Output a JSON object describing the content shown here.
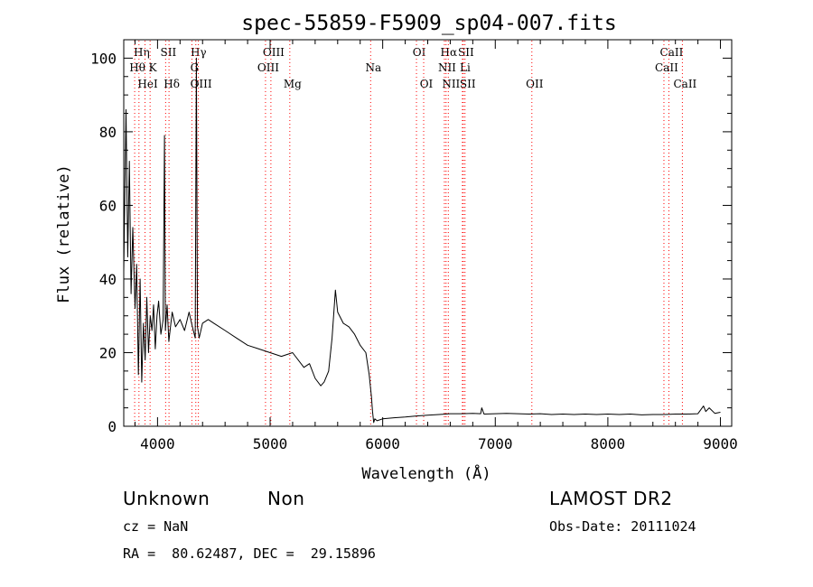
{
  "chart_data": {
    "type": "line",
    "title": "spec-55859-F5909_sp04-007.fits",
    "xlabel": "Wavelength (Å)",
    "ylabel": "Flux (relative)",
    "xlim": [
      3700,
      9100
    ],
    "ylim": [
      0,
      105
    ],
    "xticks": [
      4000,
      5000,
      6000,
      7000,
      8000,
      9000
    ],
    "yticks": [
      0,
      20,
      40,
      60,
      80,
      100
    ],
    "grid": false,
    "series": [
      {
        "x": [
          3700,
          3720,
          3735,
          3750,
          3765,
          3780,
          3800,
          3815,
          3830,
          3845,
          3860,
          3875,
          3890,
          3905,
          3920,
          3935,
          3950,
          3965,
          3980,
          3995,
          4010,
          4030,
          4050,
          4062,
          4070,
          4085,
          4100,
          4130,
          4160,
          4200,
          4240,
          4280,
          4310,
          4335,
          4345,
          4355,
          4370,
          4400,
          4450,
          4500,
          4600,
          4700,
          4800,
          4900,
          5000,
          5100,
          5200,
          5300,
          5350,
          5400,
          5450,
          5480,
          5520,
          5550,
          5580,
          5600,
          5650,
          5700,
          5750,
          5800,
          5850,
          5880,
          5900,
          5910,
          5920,
          5930,
          5950,
          6000,
          6100,
          6200,
          6300,
          6400,
          6500,
          6600,
          6700,
          6800,
          6870,
          6880,
          6900,
          7000,
          7100,
          7200,
          7300,
          7400,
          7500,
          7600,
          7700,
          7800,
          7900,
          8000,
          8100,
          8200,
          8300,
          8400,
          8500,
          8600,
          8700,
          8800,
          8850,
          8870,
          8900,
          8950,
          9000
        ],
        "y": [
          42,
          86,
          46,
          72,
          36,
          54,
          32,
          44,
          14,
          40,
          12,
          28,
          18,
          35,
          20,
          30,
          26,
          33,
          21,
          30,
          34,
          25,
          29,
          79,
          26,
          33,
          23,
          31,
          27,
          29,
          26,
          31,
          27,
          24,
          100,
          27,
          24,
          28,
          29,
          28,
          26,
          24,
          22,
          21,
          20,
          19,
          20,
          16,
          17,
          13,
          11,
          12,
          15,
          24,
          37,
          31,
          28,
          27,
          25,
          22,
          20,
          14,
          8,
          4,
          1,
          2,
          1.5,
          2,
          2.3,
          2.5,
          2.8,
          3,
          3.2,
          3.4,
          3.4,
          3.5,
          3.4,
          5,
          3.3,
          3.4,
          3.5,
          3.4,
          3.3,
          3.4,
          3.2,
          3.3,
          3.2,
          3.3,
          3.2,
          3.3,
          3.2,
          3.3,
          3.1,
          3.2,
          3.2,
          3.3,
          3.3,
          3.4,
          5.5,
          4,
          5,
          3.5,
          3.8
        ]
      }
    ],
    "line_markers": [
      {
        "label": "Hη",
        "x": 3835,
        "row": 0
      },
      {
        "label": "Hθ",
        "x": 3797,
        "row": 1
      },
      {
        "label": "HeI",
        "x": 3889,
        "row": 2
      },
      {
        "label": "K",
        "x": 3934,
        "row": 1
      },
      {
        "label": "SII",
        "x": 4072,
        "row": 0
      },
      {
        "label": "Hδ",
        "x": 4102,
        "row": 2
      },
      {
        "label": "Hγ",
        "x": 4340,
        "row": 0
      },
      {
        "label": "G",
        "x": 4305,
        "row": 1
      },
      {
        "label": "OIII",
        "x": 4363,
        "row": 2
      },
      {
        "label": "OIII",
        "x": 5007,
        "row": 0
      },
      {
        "label": "OIII",
        "x": 4959,
        "row": 1
      },
      {
        "label": "Mg",
        "x": 5175,
        "row": 2
      },
      {
        "label": "Na",
        "x": 5893,
        "row": 1
      },
      {
        "label": "OI",
        "x": 6300,
        "row": 0
      },
      {
        "label": "OI",
        "x": 6364,
        "row": 2
      },
      {
        "label": "Hα",
        "x": 6563,
        "row": 0
      },
      {
        "label": "NII",
        "x": 6548,
        "row": 1
      },
      {
        "label": "NII",
        "x": 6583,
        "row": 2
      },
      {
        "label": "SII",
        "x": 6716,
        "row": 0
      },
      {
        "label": "SII",
        "x": 6731,
        "row": 2
      },
      {
        "label": "Li",
        "x": 6708,
        "row": 1
      },
      {
        "label": "OII",
        "x": 7325,
        "row": 2
      },
      {
        "label": "CaII",
        "x": 8542,
        "row": 0
      },
      {
        "label": "CaII",
        "x": 8498,
        "row": 1
      },
      {
        "label": "CaII",
        "x": 8662,
        "row": 2
      }
    ]
  },
  "info": {
    "class": "Unknown",
    "subclass": "Non",
    "survey": "LAMOST DR2",
    "cz": "cz = NaN",
    "obs_date": "Obs-Date: 20111024",
    "coords": "RA =  80.62487, DEC =  29.15896"
  },
  "colors": {
    "line_marker": "#ff0000",
    "spectrum": "#000000"
  }
}
